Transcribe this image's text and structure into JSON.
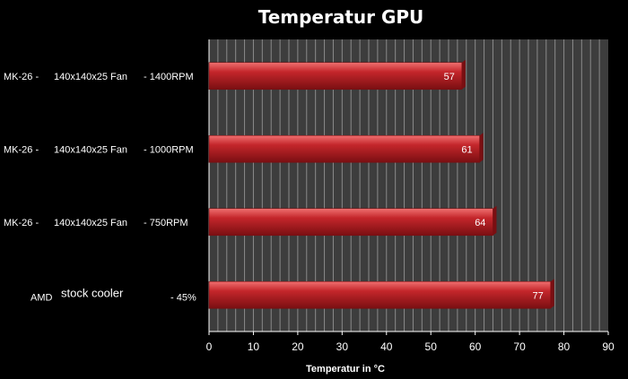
{
  "chart_data": {
    "type": "bar",
    "orientation": "horizontal",
    "title": "Temperatur GPU",
    "xlabel": "Temperatur in °C",
    "ylabel": "",
    "xlim": [
      0,
      90
    ],
    "x_ticks": [
      0,
      10,
      20,
      30,
      40,
      50,
      60,
      70,
      80,
      90
    ],
    "grid": true,
    "legend": "none",
    "categories": [
      [
        "MK-26 -",
        "140x140x25 Fan",
        "- 1400RPM"
      ],
      [
        "MK-26 -",
        "140x140x25 Fan",
        "- 1000RPM"
      ],
      [
        "MK-26 -",
        "140x140x25 Fan",
        "- 750RPM"
      ],
      [
        "AMD",
        "stock cooler",
        "- 45%"
      ]
    ],
    "values": [
      57,
      61,
      64,
      77
    ],
    "data_labels": [
      "57",
      "61",
      "64",
      "77"
    ],
    "colors": {
      "background": "#000000",
      "plot_area": "#3d3d3d",
      "gridline": "#8a8a8a",
      "bar": "#c4262b",
      "bar_highlight": "#f07070",
      "bar_shadow": "#7a0f12",
      "text": "#ffffff"
    }
  }
}
